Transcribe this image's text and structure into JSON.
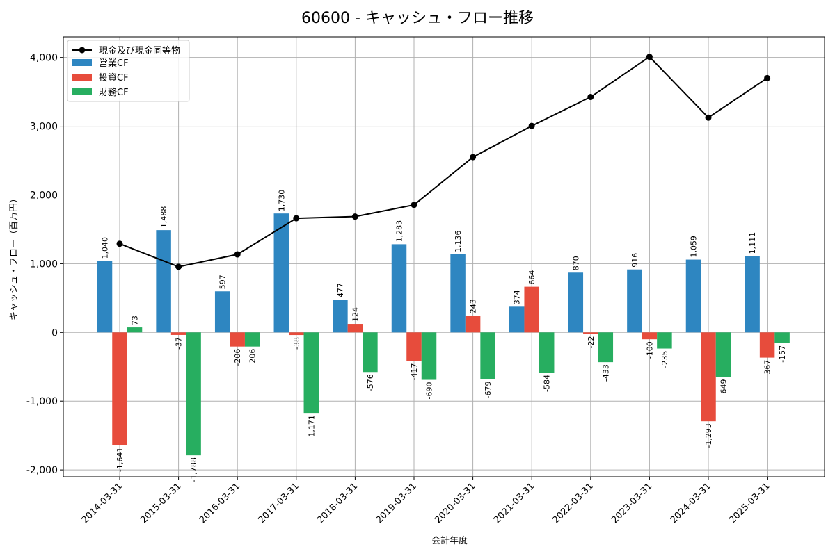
{
  "chart_data": {
    "type": "bar",
    "title": "60600 - キャッシュ・フロー推移",
    "xlabel": "会計年度",
    "ylabel": "キャッシュ・フロー（百万円）",
    "ylim": [
      -2100,
      4300
    ],
    "yticks": [
      -2000,
      -1000,
      0,
      1000,
      2000,
      3000,
      4000
    ],
    "ytick_labels": [
      "-2,000",
      "-1,000",
      "0",
      "1,000",
      "2,000",
      "3,000",
      "4,000"
    ],
    "grid": true,
    "legend_position": "top-left",
    "categories": [
      "2014-03-31",
      "2015-03-31",
      "2016-03-31",
      "2017-03-31",
      "2018-03-31",
      "2019-03-31",
      "2020-03-31",
      "2021-03-31",
      "2022-03-31",
      "2023-03-31",
      "2024-03-31",
      "2025-03-31"
    ],
    "line": {
      "name": "現金及び現金同等物",
      "color": "#000000",
      "values": [
        1290,
        955,
        1135,
        1660,
        1685,
        1855,
        2550,
        3005,
        3425,
        4010,
        3125,
        3700
      ]
    },
    "series": [
      {
        "name": "営業CF",
        "color": "#2e86c1",
        "values": [
          1040,
          1488,
          597,
          1730,
          477,
          1283,
          1136,
          374,
          870,
          916,
          1059,
          1111
        ],
        "labels": [
          "1,040",
          "1,488",
          "597",
          "1,730",
          "477",
          "1,283",
          "1,136",
          "374",
          "870",
          "916",
          "1,059",
          "1,111"
        ]
      },
      {
        "name": "投資CF",
        "color": "#e74c3c",
        "values": [
          -1641,
          -37,
          -206,
          -38,
          124,
          -417,
          243,
          664,
          -22,
          -100,
          -1293,
          -367
        ],
        "labels": [
          "-1,641",
          "-37",
          "-206",
          "-38",
          "124",
          "-417",
          "243",
          "664",
          "-22",
          "-100",
          "-1,293",
          "-367"
        ]
      },
      {
        "name": "財務CF",
        "color": "#27ae60",
        "values": [
          73,
          -1788,
          -206,
          -1171,
          -576,
          -690,
          -679,
          -584,
          -433,
          -235,
          -649,
          -157
        ],
        "labels": [
          "73",
          "-1,788",
          "-206",
          "-1,171",
          "-576",
          "-690",
          "-679",
          "-584",
          "-433",
          "-235",
          "-649",
          "-157"
        ]
      }
    ]
  }
}
